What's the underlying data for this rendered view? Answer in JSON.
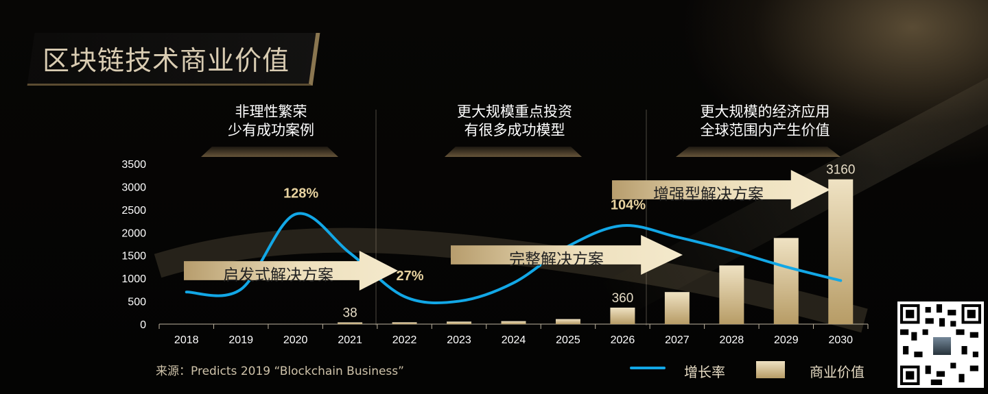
{
  "title": "区块链技术商业价值",
  "phases": [
    {
      "line1": "非理性繁荣",
      "line2": "少有成功案例"
    },
    {
      "line1": "更大规模重点投资",
      "line2": "有很多成功模型"
    },
    {
      "line1": "更大规模的经济应用",
      "line2": "全球范围内产生价值"
    }
  ],
  "arrows": [
    "启发式解决方案",
    "完整解决方案",
    "增强型解决方案"
  ],
  "source": "来源：Predicts 2019 “Blockchain Business”",
  "legend": {
    "growth": "增长率",
    "value": "商业价值"
  },
  "colors": {
    "line": "#12a7e6",
    "bar_top": "#efe2c3",
    "bar_bottom": "#b79c66"
  },
  "chart_data": {
    "type": "bar",
    "categories": [
      "2018",
      "2019",
      "2020",
      "2021",
      "2022",
      "2023",
      "2024",
      "2025",
      "2026",
      "2027",
      "2028",
      "2029",
      "2030"
    ],
    "series": [
      {
        "name": "商业价值",
        "type": "bar",
        "values": [
          0,
          0,
          0,
          38,
          40,
          55,
          65,
          110,
          360,
          700,
          1280,
          1880,
          3160
        ]
      },
      {
        "name": "增长率",
        "type": "line",
        "values": [
          700,
          760,
          2400,
          1550,
          600,
          500,
          900,
          1700,
          2150,
          1900,
          1600,
          1250,
          950
        ]
      }
    ],
    "ylim": [
      0,
      3500
    ],
    "yticks": [
      0,
      500,
      1000,
      1500,
      2000,
      2500,
      3000,
      3500
    ],
    "data_labels": [
      {
        "category": "2021",
        "text": "38"
      },
      {
        "category": "2026",
        "text": "360"
      },
      {
        "category": "2030",
        "text": "3160"
      }
    ],
    "rate_labels": [
      {
        "category": "2020",
        "text": "128%"
      },
      {
        "category": "2022",
        "text": "27%"
      },
      {
        "category": "2026",
        "text": "104%"
      }
    ],
    "xlabel": "",
    "ylabel": "",
    "grid": false
  }
}
